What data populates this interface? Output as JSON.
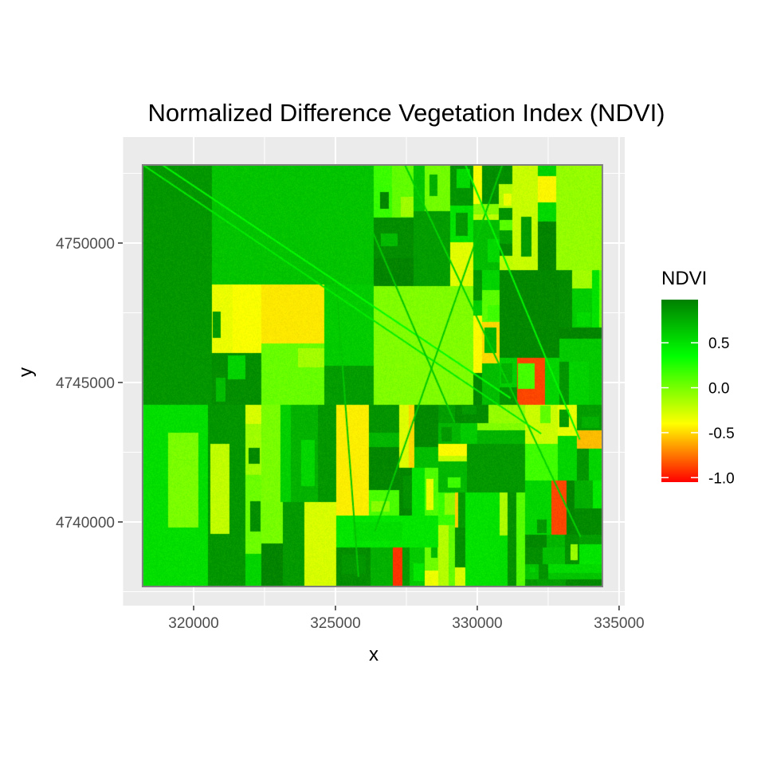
{
  "chart_data": {
    "type": "heatmap",
    "title": "Normalized Difference Vegetation Index (NDVI)",
    "xlabel": "x",
    "ylabel": "y",
    "xlim": [
      317500,
      335200
    ],
    "ylim": [
      4737000,
      4753800
    ],
    "raster_extent": {
      "x": [
        318200,
        334400
      ],
      "y": [
        4737700,
        4752800
      ]
    },
    "x_ticks": [
      320000,
      325000,
      330000,
      335000
    ],
    "x_tick_labels": [
      "320000",
      "325000",
      "330000",
      "335000"
    ],
    "y_ticks": [
      4740000,
      4745000,
      4750000
    ],
    "y_tick_labels": [
      "4740000",
      "4745000",
      "4750000"
    ],
    "grid": true,
    "legend": {
      "title": "NDVI",
      "placement": "right",
      "range": [
        -1.05,
        0.98
      ],
      "breaks": [
        0.5,
        0.0,
        -0.5,
        -1.0
      ],
      "break_labels": [
        "0.5",
        "0.0",
        "-0.5",
        "-1.0"
      ],
      "colors": [
        {
          "value": -1.05,
          "color": "#ff0000"
        },
        {
          "value": -0.4,
          "color": "#ffff00"
        },
        {
          "value": 0.35,
          "color": "#00ff00"
        },
        {
          "value": 0.98,
          "color": "#008000"
        }
      ]
    },
    "value_range": [
      -1.05,
      0.98
    ],
    "panel_background": "#ebebeb",
    "grid_color": "#ffffff"
  }
}
